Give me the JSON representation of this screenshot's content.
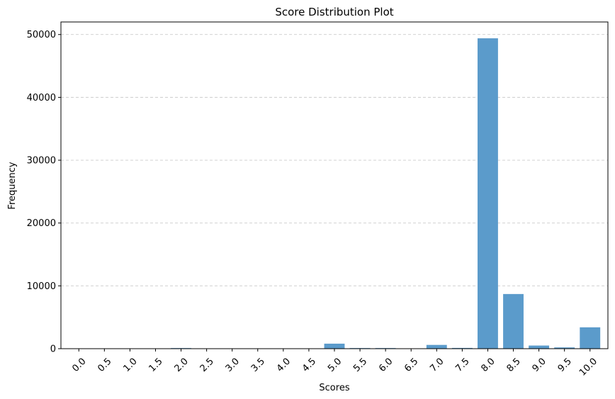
{
  "chart_data": {
    "type": "bar",
    "title": "Score Distribution Plot",
    "xlabel": "Scores",
    "ylabel": "Frequency",
    "categories": [
      "0.0",
      "0.5",
      "1.0",
      "1.5",
      "2.0",
      "2.5",
      "3.0",
      "3.5",
      "4.0",
      "4.5",
      "5.0",
      "5.5",
      "6.0",
      "6.5",
      "7.0",
      "7.5",
      "8.0",
      "8.5",
      "9.0",
      "9.5",
      "10.0"
    ],
    "values": [
      15,
      10,
      10,
      10,
      100,
      10,
      10,
      10,
      20,
      20,
      800,
      100,
      100,
      40,
      600,
      120,
      49400,
      8700,
      500,
      200,
      3400
    ],
    "ylim": [
      0,
      52000
    ],
    "yticks": [
      0,
      10000,
      20000,
      30000,
      40000,
      50000
    ],
    "ytick_labels": [
      "0",
      "10000",
      "20000",
      "30000",
      "40000",
      "50000"
    ],
    "bar_color": "#5b9bcb",
    "grid": {
      "axis": "y",
      "style": "dashed"
    },
    "xtick_rotation": "45"
  }
}
